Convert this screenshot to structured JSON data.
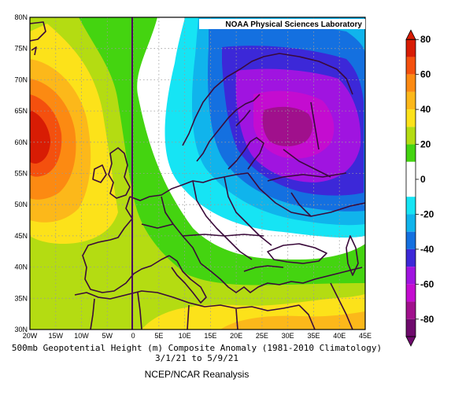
{
  "credit": "NOAA Physical Sciences Laboratory",
  "caption": {
    "line1": "500mb Geopotential Height (m) Composite Anomaly (1981-2010 Climatology)",
    "line2": "3/1/21   to 5/9/21",
    "line3": "NCEP/NCAR Reanalysis"
  },
  "axes": {
    "lon_labels": [
      "20W",
      "15W",
      "10W",
      "5W",
      "0",
      "5E",
      "10E",
      "15E",
      "20E",
      "25E",
      "30E",
      "35E",
      "40E",
      "45E"
    ],
    "lat_labels": [
      "80N",
      "75N",
      "70N",
      "65N",
      "60N",
      "55N",
      "50N",
      "45N",
      "40N",
      "35N",
      "30N"
    ]
  },
  "colorbar": {
    "levels": [
      80,
      60,
      40,
      20,
      0,
      -20,
      -40,
      -60,
      -80
    ],
    "bins": [
      {
        "from": 70,
        "to": 80,
        "color": "#d81c04"
      },
      {
        "from": 60,
        "to": 70,
        "color": "#f4500e"
      },
      {
        "from": 50,
        "to": 60,
        "color": "#fc8a12"
      },
      {
        "from": 40,
        "to": 50,
        "color": "#fcb81a"
      },
      {
        "from": 30,
        "to": 40,
        "color": "#fce21a"
      },
      {
        "from": 20,
        "to": 30,
        "color": "#b4dc12"
      },
      {
        "from": 10,
        "to": 20,
        "color": "#44d410"
      },
      {
        "from": -10,
        "to": 10,
        "color": "#ffffff"
      },
      {
        "from": -20,
        "to": -10,
        "color": "#16e4f4"
      },
      {
        "from": -30,
        "to": -20,
        "color": "#10b4ec"
      },
      {
        "from": -40,
        "to": -30,
        "color": "#1470e0"
      },
      {
        "from": -50,
        "to": -40,
        "color": "#3c28d8"
      },
      {
        "from": -60,
        "to": -50,
        "color": "#a014e0"
      },
      {
        "from": -70,
        "to": -60,
        "color": "#c40cd0"
      },
      {
        "from": -80,
        "to": -70,
        "color": "#a0108c"
      },
      {
        "from": -90,
        "to": -80,
        "color": "#6e0a6c"
      }
    ]
  },
  "colors": {
    "coastline": "#3a0a3a",
    "grid": "#9a9a9a"
  }
}
